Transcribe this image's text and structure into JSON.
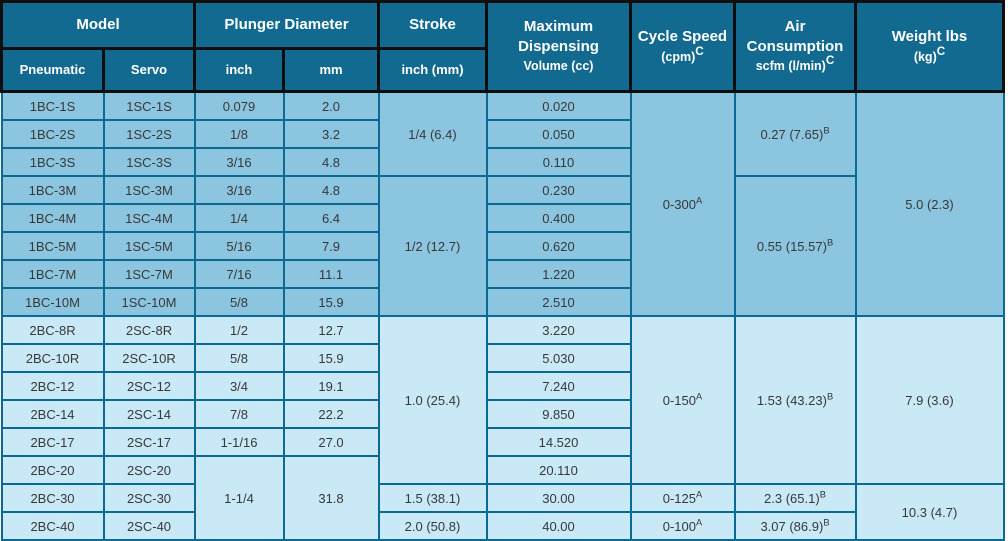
{
  "table": {
    "colors": {
      "header_bg": "#136a90",
      "header_text": "#ffffff",
      "band1_bg": "#8cc5e0",
      "band2_bg": "#cae9f7",
      "body_border": "#0c6a92",
      "header_border": "#0e0e0e",
      "body_text": "#383838"
    },
    "header": {
      "model": "Model",
      "pneumatic": "Pneumatic",
      "servo": "Servo",
      "plunger_diameter": "Plunger Diameter",
      "inch": "inch",
      "mm": "mm",
      "stroke": "Stroke",
      "stroke_sub": "inch (mm)",
      "max_dispensing": {
        "line1": "Maximum",
        "line2": "Dispensing",
        "line3": "Volume (cc)"
      },
      "cycle_speed": {
        "line1": "Cycle Speed",
        "line2": "(cpm)",
        "sup": "C"
      },
      "air_consumption": {
        "line1": "Air",
        "line2": "Consumption",
        "line3": "scfm (l/min)",
        "sup": "C"
      },
      "weight": {
        "line1": "Weight lbs",
        "line2": "(kg)",
        "sup": "C"
      }
    },
    "rows": [
      {
        "band": 1,
        "cells": [
          {
            "n": "pneumatic-model",
            "t": "1BC-1S"
          },
          {
            "n": "servo-model",
            "t": "1SC-1S"
          },
          {
            "n": "plunger-inch",
            "t": "0.079"
          },
          {
            "n": "plunger-mm",
            "t": "2.0"
          },
          {
            "n": "stroke",
            "t": "1/4 (6.4)",
            "rs": 3
          },
          {
            "n": "max-volume",
            "t": "0.020"
          },
          {
            "n": "cycle-speed",
            "t": "0-300",
            "sup": "A",
            "rs": 8
          },
          {
            "n": "air-consumption",
            "t": "0.27 (7.65)",
            "sup": "B",
            "rs": 3
          },
          {
            "n": "weight",
            "t": "5.0 (2.3)",
            "rs": 8
          }
        ]
      },
      {
        "band": 1,
        "cells": [
          {
            "n": "pneumatic-model",
            "t": "1BC-2S"
          },
          {
            "n": "servo-model",
            "t": "1SC-2S"
          },
          {
            "n": "plunger-inch",
            "t": "1/8"
          },
          {
            "n": "plunger-mm",
            "t": "3.2"
          },
          {
            "n": "max-volume",
            "t": "0.050"
          }
        ]
      },
      {
        "band": 1,
        "cells": [
          {
            "n": "pneumatic-model",
            "t": "1BC-3S"
          },
          {
            "n": "servo-model",
            "t": "1SC-3S"
          },
          {
            "n": "plunger-inch",
            "t": "3/16"
          },
          {
            "n": "plunger-mm",
            "t": "4.8"
          },
          {
            "n": "max-volume",
            "t": "0.110"
          }
        ]
      },
      {
        "band": 1,
        "cells": [
          {
            "n": "pneumatic-model",
            "t": "1BC-3M"
          },
          {
            "n": "servo-model",
            "t": "1SC-3M"
          },
          {
            "n": "plunger-inch",
            "t": "3/16"
          },
          {
            "n": "plunger-mm",
            "t": "4.8"
          },
          {
            "n": "stroke",
            "t": "1/2 (12.7)",
            "rs": 5
          },
          {
            "n": "max-volume",
            "t": "0.230"
          },
          {
            "n": "air-consumption",
            "t": "0.55 (15.57)",
            "sup": "B",
            "rs": 5
          }
        ]
      },
      {
        "band": 1,
        "cells": [
          {
            "n": "pneumatic-model",
            "t": "1BC-4M"
          },
          {
            "n": "servo-model",
            "t": "1SC-4M"
          },
          {
            "n": "plunger-inch",
            "t": "1/4"
          },
          {
            "n": "plunger-mm",
            "t": "6.4"
          },
          {
            "n": "max-volume",
            "t": "0.400"
          }
        ]
      },
      {
        "band": 1,
        "cells": [
          {
            "n": "pneumatic-model",
            "t": "1BC-5M"
          },
          {
            "n": "servo-model",
            "t": "1SC-5M"
          },
          {
            "n": "plunger-inch",
            "t": "5/16"
          },
          {
            "n": "plunger-mm",
            "t": "7.9"
          },
          {
            "n": "max-volume",
            "t": "0.620"
          }
        ]
      },
      {
        "band": 1,
        "cells": [
          {
            "n": "pneumatic-model",
            "t": "1BC-7M"
          },
          {
            "n": "servo-model",
            "t": "1SC-7M"
          },
          {
            "n": "plunger-inch",
            "t": "7/16"
          },
          {
            "n": "plunger-mm",
            "t": "11.1"
          },
          {
            "n": "max-volume",
            "t": "1.220"
          }
        ]
      },
      {
        "band": 1,
        "cells": [
          {
            "n": "pneumatic-model",
            "t": "1BC-10M"
          },
          {
            "n": "servo-model",
            "t": "1SC-10M"
          },
          {
            "n": "plunger-inch",
            "t": "5/8"
          },
          {
            "n": "plunger-mm",
            "t": "15.9"
          },
          {
            "n": "max-volume",
            "t": "2.510"
          }
        ]
      },
      {
        "band": 2,
        "cells": [
          {
            "n": "pneumatic-model",
            "t": "2BC-8R"
          },
          {
            "n": "servo-model",
            "t": "2SC-8R"
          },
          {
            "n": "plunger-inch",
            "t": "1/2"
          },
          {
            "n": "plunger-mm",
            "t": "12.7"
          },
          {
            "n": "stroke",
            "t": "1.0 (25.4)",
            "rs": 6
          },
          {
            "n": "max-volume",
            "t": "3.220"
          },
          {
            "n": "cycle-speed",
            "t": "0-150",
            "sup": "A",
            "rs": 6
          },
          {
            "n": "air-consumption",
            "t": "1.53 (43.23)",
            "sup": "B",
            "rs": 6
          },
          {
            "n": "weight",
            "t": "7.9 (3.6)",
            "rs": 6
          }
        ]
      },
      {
        "band": 2,
        "cells": [
          {
            "n": "pneumatic-model",
            "t": "2BC-10R"
          },
          {
            "n": "servo-model",
            "t": "2SC-10R"
          },
          {
            "n": "plunger-inch",
            "t": "5/8"
          },
          {
            "n": "plunger-mm",
            "t": "15.9"
          },
          {
            "n": "max-volume",
            "t": "5.030"
          }
        ]
      },
      {
        "band": 2,
        "cells": [
          {
            "n": "pneumatic-model",
            "t": "2BC-12"
          },
          {
            "n": "servo-model",
            "t": "2SC-12"
          },
          {
            "n": "plunger-inch",
            "t": "3/4"
          },
          {
            "n": "plunger-mm",
            "t": "19.1"
          },
          {
            "n": "max-volume",
            "t": "7.240"
          }
        ]
      },
      {
        "band": 2,
        "cells": [
          {
            "n": "pneumatic-model",
            "t": "2BC-14"
          },
          {
            "n": "servo-model",
            "t": "2SC-14"
          },
          {
            "n": "plunger-inch",
            "t": "7/8"
          },
          {
            "n": "plunger-mm",
            "t": "22.2"
          },
          {
            "n": "max-volume",
            "t": "9.850"
          }
        ]
      },
      {
        "band": 2,
        "cells": [
          {
            "n": "pneumatic-model",
            "t": "2BC-17"
          },
          {
            "n": "servo-model",
            "t": "2SC-17"
          },
          {
            "n": "plunger-inch",
            "t": "1-1/16"
          },
          {
            "n": "plunger-mm",
            "t": "27.0"
          },
          {
            "n": "max-volume",
            "t": "14.520"
          }
        ]
      },
      {
        "band": 2,
        "cells": [
          {
            "n": "pneumatic-model",
            "t": "2BC-20"
          },
          {
            "n": "servo-model",
            "t": "2SC-20"
          },
          {
            "n": "plunger-inch",
            "t": "1-1/4",
            "rs": 3
          },
          {
            "n": "plunger-mm",
            "t": "31.8",
            "rs": 3
          },
          {
            "n": "max-volume",
            "t": "20.110"
          }
        ]
      },
      {
        "band": 2,
        "cells": [
          {
            "n": "pneumatic-model",
            "t": "2BC-30"
          },
          {
            "n": "servo-model",
            "t": "2SC-30"
          },
          {
            "n": "stroke",
            "t": "1.5 (38.1)"
          },
          {
            "n": "max-volume",
            "t": "30.00"
          },
          {
            "n": "cycle-speed",
            "t": "0-125",
            "sup": "A"
          },
          {
            "n": "air-consumption",
            "t": "2.3 (65.1)",
            "sup": "B"
          },
          {
            "n": "weight",
            "t": "10.3 (4.7)",
            "rs": 2
          }
        ]
      },
      {
        "band": 2,
        "cells": [
          {
            "n": "pneumatic-model",
            "t": "2BC-40"
          },
          {
            "n": "servo-model",
            "t": "2SC-40"
          },
          {
            "n": "stroke",
            "t": "2.0 (50.8)"
          },
          {
            "n": "max-volume",
            "t": "40.00"
          },
          {
            "n": "cycle-speed",
            "t": "0-100",
            "sup": "A"
          },
          {
            "n": "air-consumption",
            "t": "3.07 (86.9)",
            "sup": "B"
          }
        ]
      }
    ]
  }
}
